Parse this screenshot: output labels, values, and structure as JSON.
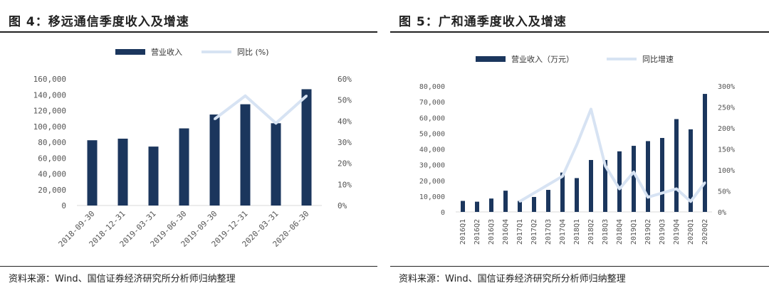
{
  "colors": {
    "bar": "#1b365d",
    "line": "#d7e3f3",
    "rule": "#222222"
  },
  "source": "资料来源：Wind、国信证券经济研究所分析师归纳整理",
  "chart_data": [
    {
      "title": "图 4：移远通信季度收入及增速",
      "type": "bar",
      "categories": [
        "2018-09-30",
        "2018-12-31",
        "2019-03-31",
        "2019-06-30",
        "2019-09-30",
        "2019-12-31",
        "2020-03-31",
        "2020-06-30"
      ],
      "series": [
        {
          "name": "营业收入",
          "type": "bar",
          "axis": "left",
          "values": [
            82500,
            84500,
            74500,
            97500,
            115000,
            128000,
            104000,
            147000
          ]
        },
        {
          "name": "同比 (%)",
          "type": "line",
          "axis": "right",
          "values": [
            null,
            null,
            null,
            null,
            41,
            52,
            39,
            52
          ]
        }
      ],
      "yleft": {
        "min": 0,
        "max": 160000,
        "ticks": [
          "0",
          "20,000",
          "40,000",
          "60,000",
          "80,000",
          "100,000",
          "120,000",
          "140,000",
          "160,000"
        ]
      },
      "yright": {
        "min": 0,
        "max": 60,
        "ticks": [
          "0%",
          "10%",
          "20%",
          "30%",
          "40%",
          "50%",
          "60%"
        ]
      },
      "legend": "top",
      "grid": false
    },
    {
      "title": "图 5：广和通季度收入及增速",
      "type": "bar",
      "categories": [
        "2016Q1",
        "2016Q2",
        "2016Q3",
        "2016Q4",
        "2017Q1",
        "2017Q2",
        "2017Q3",
        "2017Q4",
        "2018Q1",
        "2018Q2",
        "2018Q3",
        "2018Q4",
        "2019Q1",
        "2019Q2",
        "2019Q3",
        "2019Q4",
        "2020Q1",
        "2020Q2"
      ],
      "series": [
        {
          "name": "营业收入（万元）",
          "type": "bar",
          "axis": "left",
          "values": [
            7000,
            6500,
            8500,
            13500,
            7000,
            9500,
            14000,
            25000,
            21500,
            33000,
            33000,
            38500,
            42000,
            45000,
            47000,
            59000,
            52500,
            75000
          ]
        },
        {
          "name": "同比增速",
          "type": "line",
          "axis": "right",
          "values": [
            null,
            null,
            null,
            null,
            25,
            45,
            65,
            85,
            160,
            245,
            110,
            55,
            95,
            35,
            45,
            55,
            25,
            70
          ]
        }
      ],
      "yleft": {
        "min": 0,
        "max": 80000,
        "ticks": [
          "0",
          "10,000",
          "20,000",
          "30,000",
          "40,000",
          "50,000",
          "60,000",
          "70,000",
          "80,000"
        ]
      },
      "yright": {
        "min": 0,
        "max": 300,
        "ticks": [
          "0%",
          "50%",
          "100%",
          "150%",
          "200%",
          "250%",
          "300%"
        ]
      },
      "legend": "top",
      "grid": false
    }
  ]
}
